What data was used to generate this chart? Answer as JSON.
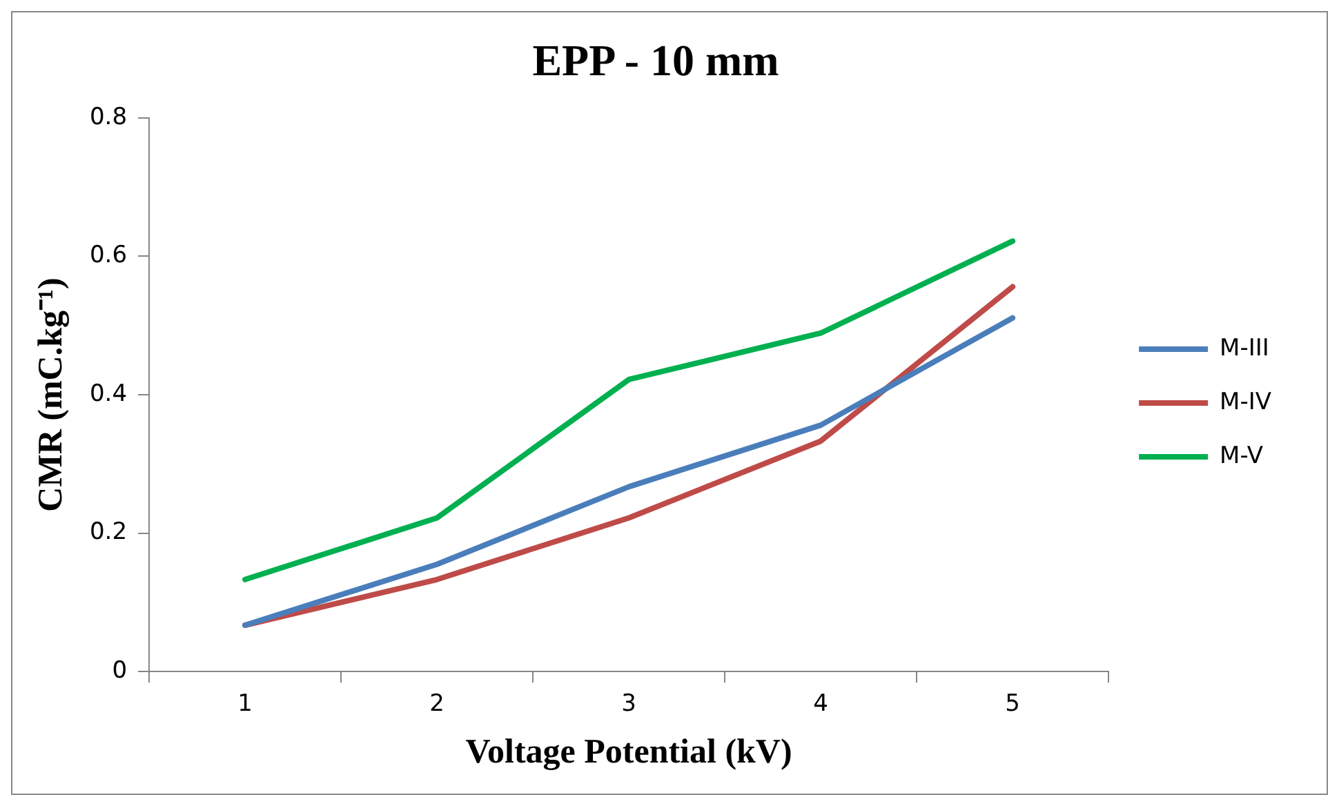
{
  "chart_data": {
    "type": "line",
    "title": "EPP - 10 mm",
    "xlabel": "Voltage Potential (kV)",
    "ylabel": "CMR (mC.kg⁻¹)",
    "categories": [
      "1",
      "2",
      "3",
      "4",
      "5"
    ],
    "series": [
      {
        "name": "M-III",
        "color": "#4a7ebb",
        "values": [
          0.067,
          0.155,
          0.267,
          0.356,
          0.511
        ]
      },
      {
        "name": "M-IV",
        "color": "#be4b48",
        "values": [
          0.067,
          0.133,
          0.222,
          0.333,
          0.556
        ]
      },
      {
        "name": "M-V",
        "color": "#00b050",
        "values": [
          0.133,
          0.222,
          0.422,
          0.489,
          0.622
        ]
      }
    ],
    "ylim": [
      0,
      0.8
    ],
    "yticks": [
      0,
      0.2,
      0.4,
      0.6,
      0.8
    ],
    "grid": false,
    "legend": "right",
    "marker": "none",
    "line_style": "solid"
  }
}
